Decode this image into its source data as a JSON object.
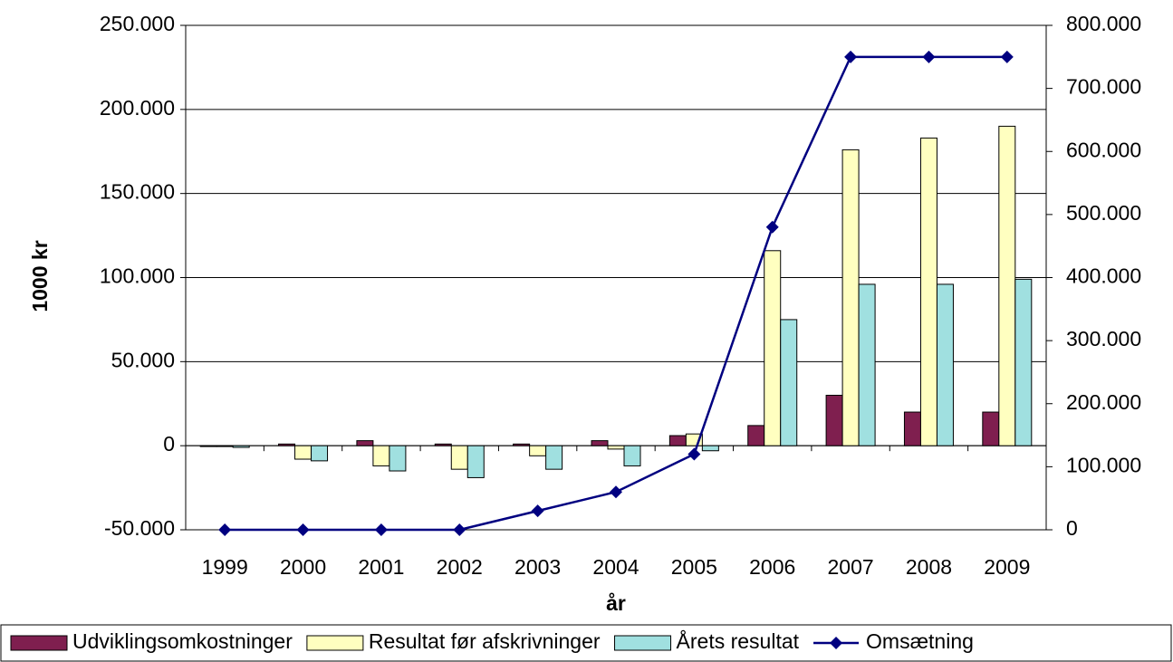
{
  "chart_data": {
    "type": "bar",
    "x_label": "år",
    "y_label": "1000 kr",
    "categories": [
      "1999",
      "2000",
      "2001",
      "2002",
      "2003",
      "2004",
      "2005",
      "2006",
      "2007",
      "2008",
      "2009"
    ],
    "series": [
      {
        "name": "Udviklingsomkostninger",
        "color": "#7f1f4f",
        "values": [
          -500,
          1000,
          3000,
          1000,
          1000,
          3000,
          6000,
          12000,
          30000,
          20000,
          20000
        ]
      },
      {
        "name": "Resultat før afskrivninger",
        "color": "#ffffc0",
        "values": [
          -500,
          -8000,
          -12000,
          -14000,
          -6000,
          -2000,
          7000,
          116000,
          176000,
          183000,
          190000
        ]
      },
      {
        "name": "Årets resultat",
        "color": "#a0e0e0",
        "values": [
          -1000,
          -9000,
          -15000,
          -19000,
          -14000,
          -12000,
          -3000,
          75000,
          96000,
          96000,
          99000
        ]
      },
      {
        "name": "Omsætning",
        "color": "#000080",
        "type": "line",
        "axis": "y2",
        "values": [
          0,
          0,
          0,
          0,
          30000,
          60000,
          120000,
          480000,
          750000,
          750000,
          750000
        ]
      }
    ],
    "ylim": [
      -50000,
      250000
    ],
    "yticks": [
      {
        "value": -50000,
        "label": "-50.000"
      },
      0,
      {
        "value": 50000,
        "label": "50.000"
      },
      {
        "value": 100000,
        "label": "100.000"
      },
      {
        "value": 150000,
        "label": "150.000"
      },
      {
        "value": 200000,
        "label": "200.000"
      },
      {
        "value": 250000,
        "label": "250.000"
      }
    ],
    "y2lim": [
      0,
      800000
    ],
    "y2ticks": [
      0,
      {
        "value": 100000,
        "label": "100.000"
      },
      {
        "value": 200000,
        "label": "200.000"
      },
      {
        "value": 300000,
        "label": "300.000"
      },
      {
        "value": 400000,
        "label": "400.000"
      },
      {
        "value": 500000,
        "label": "500.000"
      },
      {
        "value": 600000,
        "label": "600.000"
      },
      {
        "value": 700000,
        "label": "700.000"
      },
      {
        "value": 800000,
        "label": "800.000"
      }
    ],
    "grid": true,
    "legend": "bottom"
  }
}
